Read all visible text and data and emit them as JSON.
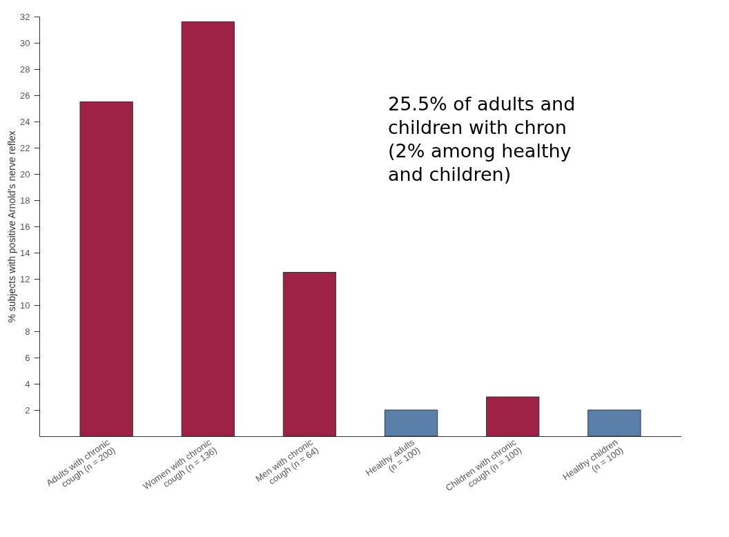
{
  "chart_data": {
    "type": "bar",
    "ylabel": "% subjects with positive Arnold's nerve reflex",
    "categories": [
      "Adults with chronic\ncough (n = 200)",
      "Women with chronic\ncough (n = 136)",
      "Men with chronic\ncough (n = 64)",
      "Healthy adults\n(n = 100)",
      "Children with chronic\ncough (n = 100)",
      "Healthy children\n(n = 100)"
    ],
    "values": [
      25.5,
      31.6,
      12.5,
      2,
      3,
      2
    ],
    "colors": [
      "#9e2246",
      "#9e2246",
      "#9e2246",
      "#5a7fa8",
      "#9e2246",
      "#5a7fa8"
    ],
    "ylim": [
      0,
      32
    ],
    "yticks": [
      2,
      4,
      6,
      8,
      10,
      12,
      14,
      16,
      18,
      20,
      22,
      24,
      26,
      28,
      30,
      32
    ],
    "grid": false,
    "annotations": [
      "25.5% of adults and\nchildren with chron\n(2% among healthy\nand children)"
    ]
  }
}
